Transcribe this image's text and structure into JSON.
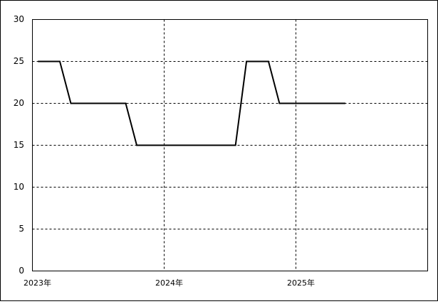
{
  "chart_data": {
    "type": "line",
    "x": [
      "2023-01",
      "2023-02",
      "2023-03",
      "2023-04",
      "2023-05",
      "2023-06",
      "2023-07",
      "2023-08",
      "2023-09",
      "2023-10",
      "2023-11",
      "2023-12",
      "2024-01",
      "2024-02",
      "2024-03",
      "2024-04",
      "2024-05",
      "2024-06",
      "2024-07",
      "2024-08",
      "2024-09",
      "2024-10",
      "2024-11",
      "2024-12",
      "2025-01",
      "2025-02",
      "2025-03",
      "2025-04",
      "2025-05"
    ],
    "series": [
      {
        "color": "#000000",
        "values": [
          25,
          25,
          25,
          20,
          20,
          20,
          20,
          20,
          20,
          15,
          15,
          15,
          15,
          15,
          15,
          15,
          15,
          15,
          15,
          25,
          25,
          25,
          20,
          20,
          20,
          20,
          20,
          20,
          20
        ]
      }
    ],
    "xlim": [
      "2023-01",
      "2026-01"
    ],
    "xticks": [
      {
        "value": "2023-01",
        "label": "2023年"
      },
      {
        "value": "2024-01",
        "label": "2024年"
      },
      {
        "value": "2025-01",
        "label": "2025年"
      }
    ],
    "ylim": [
      0,
      30
    ],
    "yticks": [
      0,
      5,
      10,
      15,
      20,
      25,
      30
    ],
    "grid": true
  }
}
